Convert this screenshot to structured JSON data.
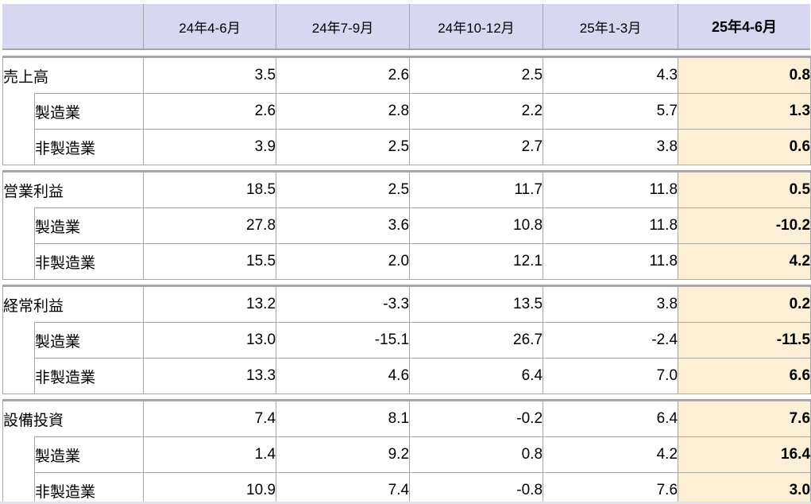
{
  "header": {
    "corner": "",
    "columns": [
      {
        "label": "24年4-6月",
        "bold": false
      },
      {
        "label": "24年7-9月",
        "bold": false
      },
      {
        "label": "24年10-12月",
        "bold": false
      },
      {
        "label": "25年1-3月",
        "bold": false
      },
      {
        "label": "25年4-6月",
        "bold": true
      }
    ]
  },
  "groups": [
    {
      "label": "売上高",
      "values": [
        "3.5",
        "2.6",
        "2.5",
        "4.3",
        "0.8"
      ],
      "sub_rows": [
        {
          "label": "製造業",
          "values": [
            "2.6",
            "2.8",
            "2.2",
            "5.7",
            "1.3"
          ]
        },
        {
          "label": "非製造業",
          "values": [
            "3.9",
            "2.5",
            "2.7",
            "3.8",
            "0.6"
          ]
        }
      ]
    },
    {
      "label": "営業利益",
      "values": [
        "18.5",
        "2.5",
        "11.7",
        "11.8",
        "0.5"
      ],
      "sub_rows": [
        {
          "label": "製造業",
          "values": [
            "27.8",
            "3.6",
            "10.8",
            "11.8",
            "-10.2"
          ]
        },
        {
          "label": "非製造業",
          "values": [
            "15.5",
            "2.0",
            "12.1",
            "11.8",
            "4.2"
          ]
        }
      ]
    },
    {
      "label": "経常利益",
      "values": [
        "13.2",
        "-3.3",
        "13.5",
        "3.8",
        "0.2"
      ],
      "sub_rows": [
        {
          "label": "製造業",
          "values": [
            "13.0",
            "-15.1",
            "26.7",
            "-2.4",
            "-11.5"
          ]
        },
        {
          "label": "非製造業",
          "values": [
            "13.3",
            "4.6",
            "6.4",
            "7.0",
            "6.6"
          ]
        }
      ]
    },
    {
      "label": "設備投資",
      "values": [
        "7.4",
        "8.1",
        "-0.2",
        "6.4",
        "7.6"
      ],
      "sub_rows": [
        {
          "label": "製造業",
          "values": [
            "1.4",
            "9.2",
            "0.8",
            "4.2",
            "16.4"
          ]
        },
        {
          "label": "非製造業",
          "values": [
            "10.9",
            "7.4",
            "-0.8",
            "7.6",
            "3.0"
          ]
        }
      ]
    }
  ],
  "colors": {
    "header_bg": "#d7d7f0",
    "highlight_col_bg": "#fbf0d5",
    "negative_text": "#ff0000",
    "grid_border": "#a6a6a6"
  },
  "chart_data": {
    "type": "table",
    "title": "",
    "columns": [
      "",
      "24年4-6月",
      "24年7-9月",
      "24年10-12月",
      "25年1-3月",
      "25年4-6月"
    ],
    "rows": [
      [
        "売上高",
        3.5,
        2.6,
        2.5,
        4.3,
        0.8
      ],
      [
        "売上高 製造業",
        2.6,
        2.8,
        2.2,
        5.7,
        1.3
      ],
      [
        "売上高 非製造業",
        3.9,
        2.5,
        2.7,
        3.8,
        0.6
      ],
      [
        "営業利益",
        18.5,
        2.5,
        11.7,
        11.8,
        0.5
      ],
      [
        "営業利益 製造業",
        27.8,
        3.6,
        10.8,
        11.8,
        -10.2
      ],
      [
        "営業利益 非製造業",
        15.5,
        2.0,
        12.1,
        11.8,
        4.2
      ],
      [
        "経常利益",
        13.2,
        -3.3,
        13.5,
        3.8,
        0.2
      ],
      [
        "経常利益 製造業",
        13.0,
        -15.1,
        26.7,
        -2.4,
        -11.5
      ],
      [
        "経常利益 非製造業",
        13.3,
        4.6,
        6.4,
        7.0,
        6.6
      ],
      [
        "設備投資",
        7.4,
        8.1,
        -0.2,
        6.4,
        7.6
      ],
      [
        "設備投資 製造業",
        1.4,
        9.2,
        0.8,
        4.2,
        16.4
      ],
      [
        "設備投資 非製造業",
        10.9,
        7.4,
        -0.8,
        7.6,
        3.0
      ]
    ],
    "notes": "negative values shown in red; last column (25年4-6月) highlighted cream and bold"
  }
}
